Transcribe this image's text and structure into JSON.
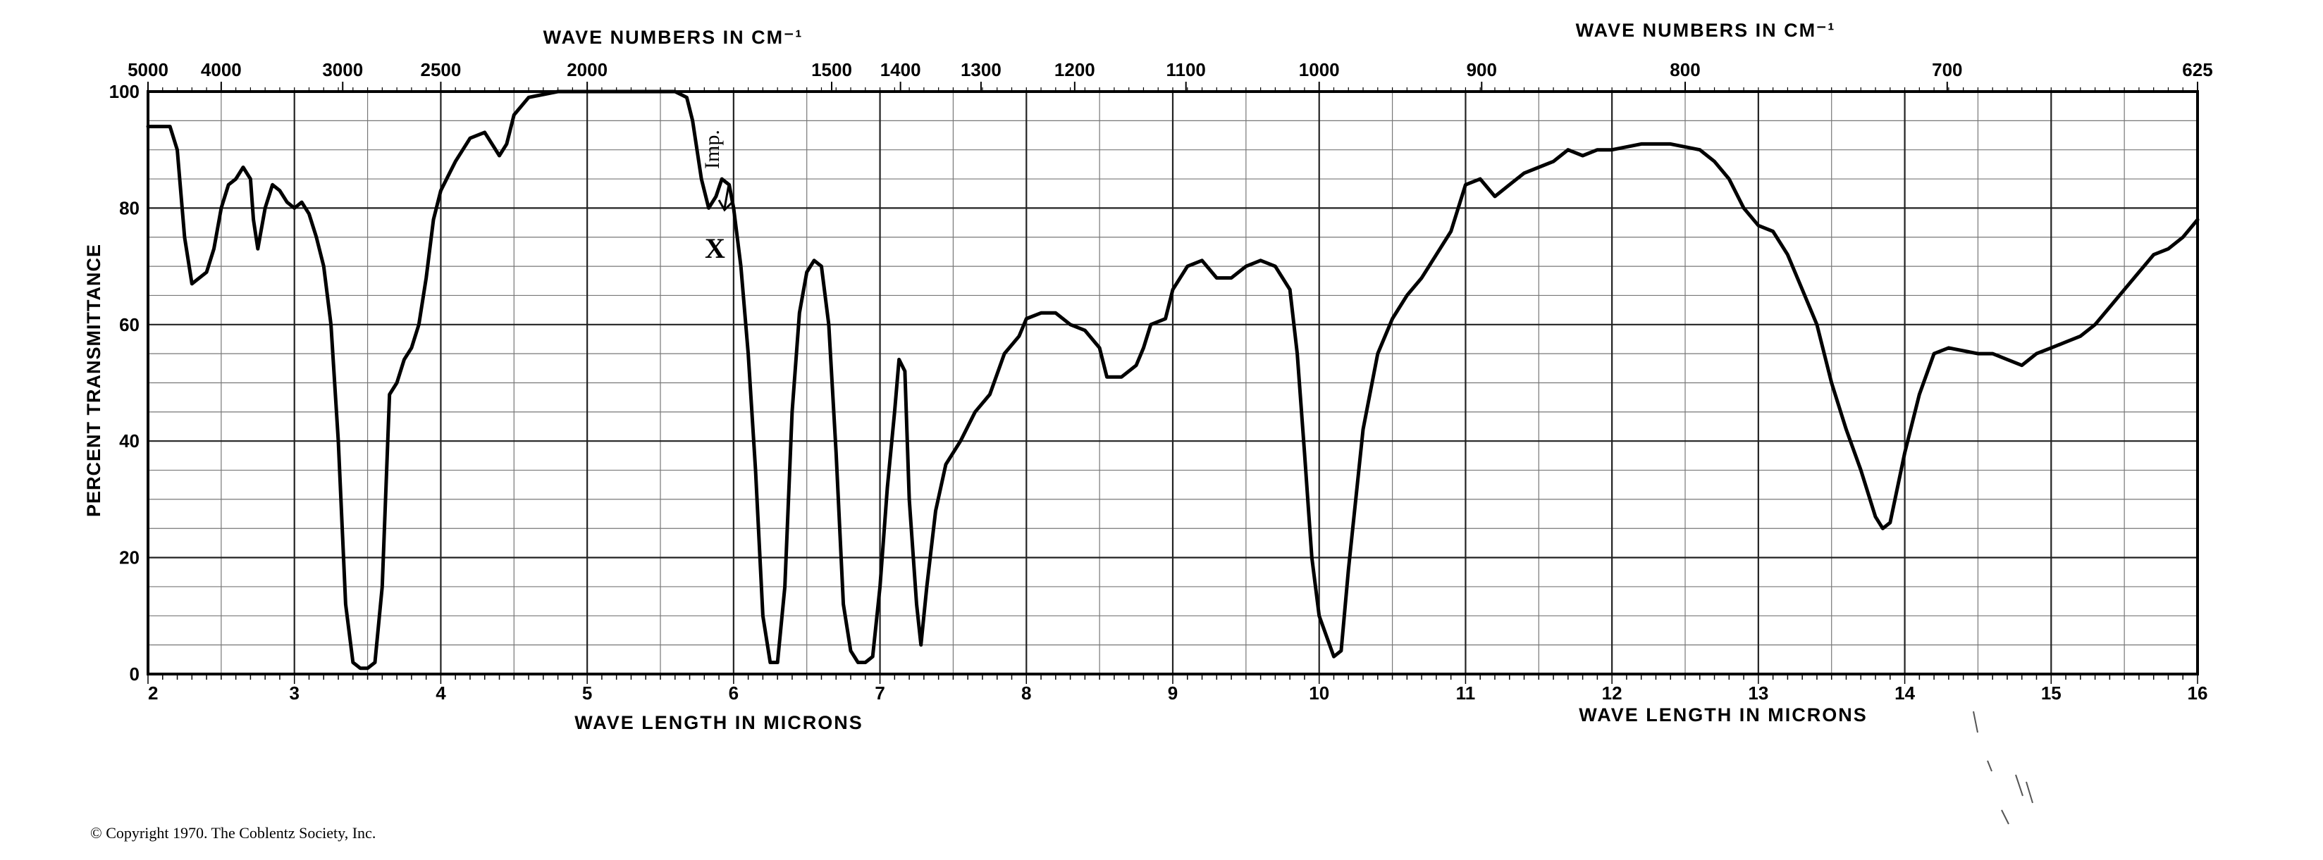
{
  "chart_data": {
    "type": "line",
    "ylabel": "PERCENT TRANSMITTANCE",
    "xlabel_bottom_left": "WAVE LENGTH IN MICRONS",
    "xlabel_bottom_right": "WAVE LENGTH IN MICRONS",
    "xlabel_top_left": "WAVE NUMBERS IN CM⁻¹",
    "xlabel_top_right": "WAVE NUMBERS IN CM⁻¹",
    "xlim": [
      2,
      16
    ],
    "ylim": [
      0,
      100
    ],
    "grid": true,
    "x_ticks_bottom": [
      "2",
      "3",
      "4",
      "5",
      "6",
      "7",
      "8",
      "9",
      "10",
      "11",
      "12",
      "13",
      "14",
      "15",
      "16"
    ],
    "x_ticks_top": [
      {
        "label": "5000",
        "x": 2.0
      },
      {
        "label": "4000",
        "x": 2.5
      },
      {
        "label": "3000",
        "x": 3.33
      },
      {
        "label": "2500",
        "x": 4.0
      },
      {
        "label": "2000",
        "x": 5.0
      },
      {
        "label": "1500",
        "x": 6.67
      },
      {
        "label": "1400",
        "x": 7.14
      },
      {
        "label": "1300",
        "x": 7.69
      },
      {
        "label": "1200",
        "x": 8.33
      },
      {
        "label": "1100",
        "x": 9.09
      },
      {
        "label": "1000",
        "x": 10.0
      },
      {
        "label": "900",
        "x": 11.11
      },
      {
        "label": "800",
        "x": 12.5
      },
      {
        "label": "700",
        "x": 14.29
      },
      {
        "label": "625",
        "x": 16.0
      }
    ],
    "y_ticks": [
      "0",
      "20",
      "40",
      "60",
      "80",
      "100"
    ],
    "series": [
      {
        "color": "#000000",
        "points": [
          [
            2.0,
            94
          ],
          [
            2.15,
            94
          ],
          [
            2.2,
            90
          ],
          [
            2.25,
            75
          ],
          [
            2.3,
            67
          ],
          [
            2.4,
            69
          ],
          [
            2.45,
            73
          ],
          [
            2.5,
            80
          ],
          [
            2.55,
            84
          ],
          [
            2.6,
            85
          ],
          [
            2.65,
            87
          ],
          [
            2.7,
            85
          ],
          [
            2.72,
            78
          ],
          [
            2.75,
            73
          ],
          [
            2.8,
            80
          ],
          [
            2.85,
            84
          ],
          [
            2.9,
            83
          ],
          [
            2.95,
            81
          ],
          [
            3.0,
            80
          ],
          [
            3.05,
            81
          ],
          [
            3.1,
            79
          ],
          [
            3.15,
            75
          ],
          [
            3.2,
            70
          ],
          [
            3.25,
            60
          ],
          [
            3.3,
            40
          ],
          [
            3.35,
            12
          ],
          [
            3.4,
            2
          ],
          [
            3.45,
            1
          ],
          [
            3.5,
            1
          ],
          [
            3.55,
            2
          ],
          [
            3.6,
            15
          ],
          [
            3.65,
            48
          ],
          [
            3.7,
            50
          ],
          [
            3.75,
            54
          ],
          [
            3.8,
            56
          ],
          [
            3.85,
            60
          ],
          [
            3.9,
            68
          ],
          [
            3.95,
            78
          ],
          [
            4.0,
            83
          ],
          [
            4.1,
            88
          ],
          [
            4.2,
            92
          ],
          [
            4.3,
            93
          ],
          [
            4.35,
            91
          ],
          [
            4.4,
            89
          ],
          [
            4.45,
            91
          ],
          [
            4.5,
            96
          ],
          [
            4.6,
            99
          ],
          [
            4.8,
            100
          ],
          [
            5.0,
            100
          ],
          [
            5.2,
            100
          ],
          [
            5.4,
            100
          ],
          [
            5.6,
            100
          ],
          [
            5.68,
            99
          ],
          [
            5.72,
            95
          ],
          [
            5.78,
            85
          ],
          [
            5.83,
            80
          ],
          [
            5.88,
            82
          ],
          [
            5.92,
            85
          ],
          [
            5.97,
            84
          ],
          [
            6.0,
            80
          ],
          [
            6.05,
            70
          ],
          [
            6.1,
            55
          ],
          [
            6.15,
            35
          ],
          [
            6.2,
            10
          ],
          [
            6.25,
            2
          ],
          [
            6.3,
            2
          ],
          [
            6.35,
            15
          ],
          [
            6.4,
            45
          ],
          [
            6.45,
            62
          ],
          [
            6.5,
            69
          ],
          [
            6.55,
            71
          ],
          [
            6.6,
            70
          ],
          [
            6.65,
            60
          ],
          [
            6.7,
            38
          ],
          [
            6.75,
            12
          ],
          [
            6.8,
            4
          ],
          [
            6.85,
            2
          ],
          [
            6.9,
            2
          ],
          [
            6.95,
            3
          ],
          [
            7.0,
            15
          ],
          [
            7.05,
            32
          ],
          [
            7.1,
            45
          ],
          [
            7.13,
            54
          ],
          [
            7.17,
            52
          ],
          [
            7.2,
            30
          ],
          [
            7.25,
            12
          ],
          [
            7.28,
            5
          ],
          [
            7.32,
            15
          ],
          [
            7.38,
            28
          ],
          [
            7.45,
            36
          ],
          [
            7.55,
            40
          ],
          [
            7.65,
            45
          ],
          [
            7.75,
            48
          ],
          [
            7.85,
            55
          ],
          [
            7.95,
            58
          ],
          [
            8.0,
            61
          ],
          [
            8.1,
            62
          ],
          [
            8.2,
            62
          ],
          [
            8.3,
            60
          ],
          [
            8.4,
            59
          ],
          [
            8.5,
            56
          ],
          [
            8.55,
            51
          ],
          [
            8.65,
            51
          ],
          [
            8.75,
            53
          ],
          [
            8.8,
            56
          ],
          [
            8.85,
            60
          ],
          [
            8.95,
            61
          ],
          [
            9.0,
            66
          ],
          [
            9.1,
            70
          ],
          [
            9.2,
            71
          ],
          [
            9.3,
            68
          ],
          [
            9.4,
            68
          ],
          [
            9.5,
            70
          ],
          [
            9.6,
            71
          ],
          [
            9.7,
            70
          ],
          [
            9.8,
            66
          ],
          [
            9.85,
            55
          ],
          [
            9.9,
            38
          ],
          [
            9.95,
            20
          ],
          [
            10.0,
            10
          ],
          [
            10.1,
            3
          ],
          [
            10.15,
            4
          ],
          [
            10.2,
            18
          ],
          [
            10.3,
            42
          ],
          [
            10.4,
            55
          ],
          [
            10.5,
            61
          ],
          [
            10.6,
            65
          ],
          [
            10.7,
            68
          ],
          [
            10.8,
            72
          ],
          [
            10.9,
            76
          ],
          [
            10.95,
            80
          ],
          [
            11.0,
            84
          ],
          [
            11.1,
            85
          ],
          [
            11.2,
            82
          ],
          [
            11.3,
            84
          ],
          [
            11.4,
            86
          ],
          [
            11.5,
            87
          ],
          [
            11.6,
            88
          ],
          [
            11.7,
            90
          ],
          [
            11.8,
            89
          ],
          [
            11.9,
            90
          ],
          [
            12.0,
            90
          ],
          [
            12.2,
            91
          ],
          [
            12.4,
            91
          ],
          [
            12.6,
            90
          ],
          [
            12.7,
            88
          ],
          [
            12.8,
            85
          ],
          [
            12.9,
            80
          ],
          [
            13.0,
            77
          ],
          [
            13.1,
            76
          ],
          [
            13.2,
            72
          ],
          [
            13.3,
            66
          ],
          [
            13.4,
            60
          ],
          [
            13.5,
            50
          ],
          [
            13.6,
            42
          ],
          [
            13.7,
            35
          ],
          [
            13.8,
            27
          ],
          [
            13.85,
            25
          ],
          [
            13.9,
            26
          ],
          [
            14.0,
            38
          ],
          [
            14.1,
            48
          ],
          [
            14.2,
            55
          ],
          [
            14.3,
            56
          ],
          [
            14.5,
            55
          ],
          [
            14.6,
            55
          ],
          [
            14.7,
            54
          ],
          [
            14.8,
            53
          ],
          [
            14.9,
            55
          ],
          [
            15.0,
            56
          ],
          [
            15.1,
            57
          ],
          [
            15.2,
            58
          ],
          [
            15.3,
            60
          ],
          [
            15.4,
            63
          ],
          [
            15.5,
            66
          ],
          [
            15.6,
            69
          ],
          [
            15.7,
            72
          ],
          [
            15.8,
            73
          ],
          [
            15.9,
            75
          ],
          [
            16.0,
            78
          ]
        ]
      }
    ],
    "annotations": {
      "imp_label": "Imp.",
      "x_marker": "X",
      "imp_x": 5.88,
      "imp_y": 80
    },
    "copyright": "© Copyright 1970.  The Coblentz Society, Inc."
  }
}
